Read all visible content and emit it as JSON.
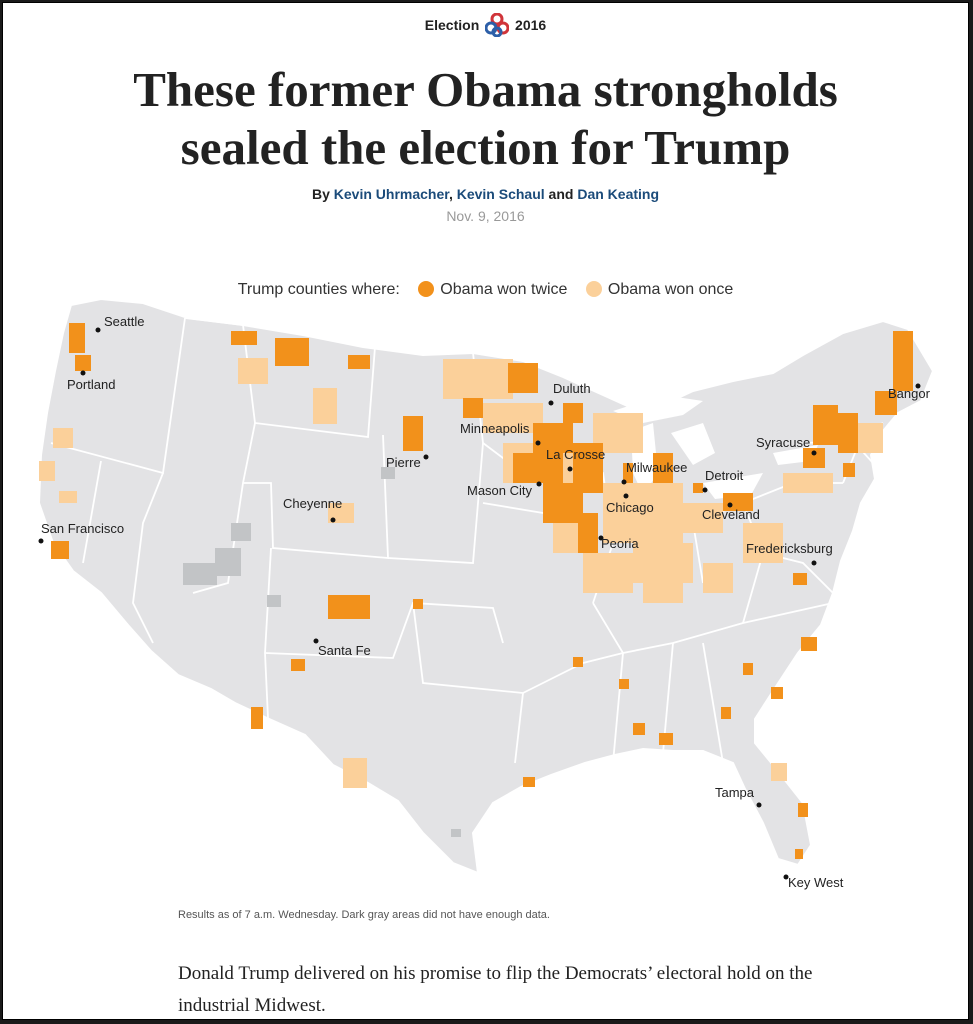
{
  "header": {
    "kicker_left": "Election",
    "kicker_right": "2016",
    "headline_line1": "These former Obama strongholds",
    "headline_line2": "sealed the election for Trump",
    "byline_prefix": "By",
    "authors": [
      "Kevin Uhrmacher",
      "Kevin Schaul",
      "Dan Keating"
    ],
    "byline_sep_comma": ",",
    "byline_sep_and": "and",
    "date": "Nov. 9, 2016"
  },
  "legend": {
    "label": "Trump counties where:",
    "items": [
      {
        "label": "Obama won twice",
        "color": "#f2911b"
      },
      {
        "label": "Obama won once",
        "color": "#fbd09a"
      }
    ]
  },
  "map": {
    "land_color": "#e3e3e5",
    "no_data_color": "#c2c4c6",
    "cities": [
      {
        "name": "Seattle"
      },
      {
        "name": "Portland"
      },
      {
        "name": "San Francisco"
      },
      {
        "name": "Cheyenne"
      },
      {
        "name": "Pierre"
      },
      {
        "name": "Santa Fe"
      },
      {
        "name": "Duluth"
      },
      {
        "name": "Minneapolis"
      },
      {
        "name": "La Crosse"
      },
      {
        "name": "Mason City"
      },
      {
        "name": "Milwaukee"
      },
      {
        "name": "Chicago"
      },
      {
        "name": "Peoria"
      },
      {
        "name": "Detroit"
      },
      {
        "name": "Cleveland"
      },
      {
        "name": "Syracuse"
      },
      {
        "name": "Bangor"
      },
      {
        "name": "Fredericksburg"
      },
      {
        "name": "Tampa"
      },
      {
        "name": "Key West"
      }
    ]
  },
  "footer": {
    "note": "Results as of 7 a.m. Wednesday. Dark gray areas did not have enough data.",
    "body": "Donald Trump delivered on his promise to flip the Democrats’ electoral hold on the industrial Midwest."
  }
}
